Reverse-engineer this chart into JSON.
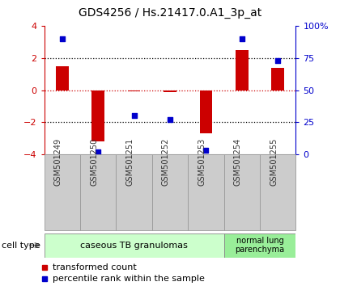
{
  "title": "GDS4256 / Hs.21417.0.A1_3p_at",
  "samples": [
    "GSM501249",
    "GSM501250",
    "GSM501251",
    "GSM501252",
    "GSM501253",
    "GSM501254",
    "GSM501255"
  ],
  "transformed_counts": [
    1.5,
    -3.2,
    -0.05,
    -0.15,
    -2.7,
    2.5,
    1.4
  ],
  "percentile_ranks": [
    90,
    2,
    30,
    27,
    3,
    90,
    73
  ],
  "ylim_left": [
    -4,
    4
  ],
  "ylim_right": [
    0,
    100
  ],
  "yticks_left": [
    -4,
    -2,
    0,
    2,
    4
  ],
  "yticks_right": [
    0,
    25,
    50,
    75,
    100
  ],
  "ytick_labels_right": [
    "0",
    "25",
    "50",
    "75",
    "100%"
  ],
  "hlines_black": [
    2,
    -2
  ],
  "hline_red": 0,
  "bar_color": "#cc0000",
  "dot_color": "#0000cc",
  "group1_label": "caseous TB granulomas",
  "group2_label": "normal lung\nparenchyma",
  "group1_color": "#ccffcc",
  "group2_color": "#99ee99",
  "cell_type_label": "cell type",
  "legend_bar_label": "transformed count",
  "legend_dot_label": "percentile rank within the sample",
  "tick_label_color_left": "#cc0000",
  "tick_label_color_right": "#0000cc",
  "bar_width": 0.35,
  "label_box_color": "#cccccc",
  "label_box_edge": "#999999"
}
